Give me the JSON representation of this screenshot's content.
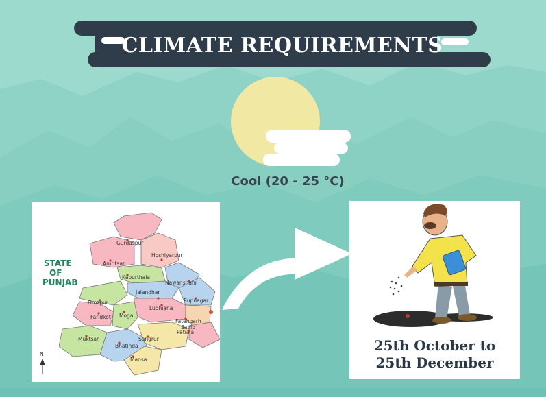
{
  "header": {
    "title": "CLIMATE REQUIREMENTS"
  },
  "temperature": {
    "label": "Cool (20 - 25 °C)"
  },
  "map": {
    "state_label_lines": [
      "STATE",
      "OF",
      "PUNJAB"
    ],
    "north_label": "N",
    "districts": [
      "Gurdaspur",
      "Amritsar",
      "Hoshiyarpur",
      "Kapurthala",
      "Nawanshahr",
      "Jalandhar",
      "Firozpur",
      "Rupnagar",
      "Faridkot",
      "Moga",
      "Ludhiana",
      "Fatehgarh",
      "Sahib",
      "Muktsar",
      "Patiala",
      "Sangrur",
      "Bhatinda",
      "Mansa"
    ]
  },
  "sowing": {
    "line1": "25th October to",
    "line2": "25th December"
  },
  "colors": {
    "banner": "#2f3c4a",
    "background": "#99d9cd",
    "sun": "#f1e8a3",
    "card": "#ffffff"
  }
}
